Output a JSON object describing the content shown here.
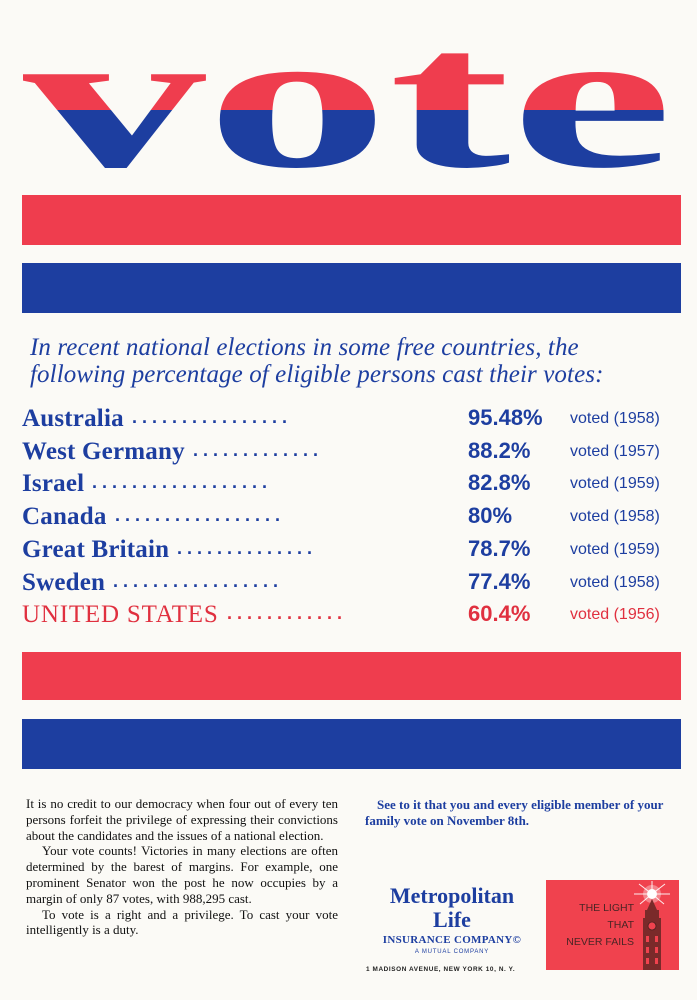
{
  "headline": {
    "word": "vote",
    "top_color": "#ef3d4e",
    "bottom_color": "#1d3ea0"
  },
  "intro": {
    "line1": "In recent national elections in some free countries, the",
    "line2": "following percentage of eligible persons cast their votes:"
  },
  "table": {
    "rows": [
      {
        "country": "Australia",
        "percent": "95.48%",
        "voted": "voted (1958)"
      },
      {
        "country": "West Germany",
        "percent": "88.2%",
        "voted": "voted (1957)"
      },
      {
        "country": "Israel",
        "percent": "82.8%",
        "voted": "voted (1959)"
      },
      {
        "country": "Canada",
        "percent": "80%",
        "voted": "voted (1958)"
      },
      {
        "country": "Great Britain",
        "percent": "78.7%",
        "voted": "voted (1959)"
      },
      {
        "country": "Sweden",
        "percent": "77.4%",
        "voted": "voted (1958)"
      },
      {
        "country": "UNITED STATES",
        "percent": "60.4%",
        "voted": "voted (1956)"
      }
    ]
  },
  "body": {
    "p1": "It is no credit to our democracy when four out of every ten persons forfeit the privilege of expressing their convictions about the candidates and the issues of a national election.",
    "p2": "Your vote counts! Victories in many elections are often determined by the barest of margins. For example, one prominent Senator won the post he now occupies by a margin of only 87 votes, with 988,295 cast.",
    "p3": "To vote is a right and a privilege. To cast your vote intelligently is a duty."
  },
  "cta": "See to it that you and every eligible member of your family vote on November 8th.",
  "sponsor": {
    "name_line1": "Metropolitan",
    "name_line2": "Life",
    "insurance": "INSURANCE COMPANY©",
    "mutual": "A MUTUAL COMPANY",
    "address": "1 MADISON AVENUE, NEW YORK 10, N. Y.",
    "tagline_1": "THE LIGHT",
    "tagline_2": "THAT",
    "tagline_3": "NEVER FAILS"
  },
  "colors": {
    "red": "#ef3d4e",
    "blue": "#1d3ea0",
    "badge": "#f0424e"
  }
}
